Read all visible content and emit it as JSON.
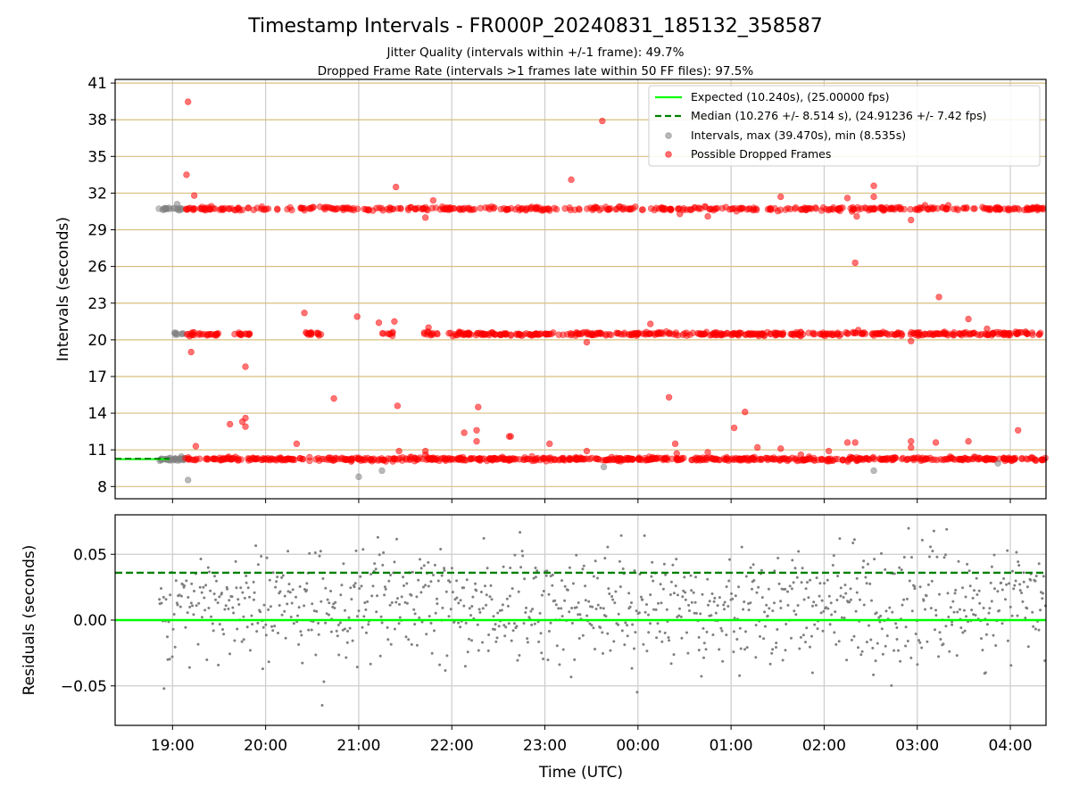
{
  "figure": {
    "title": "Timestamp Intervals - FR000P_20240831_185132_358587",
    "subtitle_1": "Jitter Quality (intervals within +/-1 frame): 49.7%",
    "subtitle_2": "Dropped Frame Rate (intervals >1 frames late within 50 FF files): 97.5%"
  },
  "chart_data": [
    {
      "type": "scatter",
      "panel": "top",
      "ylabel": "Intervals (seconds)",
      "xlim": [
        "18:23",
        "04:23"
      ],
      "ylim": [
        7,
        41.3
      ],
      "yticks": [
        "8",
        "11",
        "14",
        "17",
        "20",
        "23",
        "26",
        "29",
        "32",
        "35",
        "38",
        "41"
      ],
      "grid": true,
      "legend_position": "upper right",
      "legend": [
        {
          "label": "Expected (10.240s), (25.00000 fps)",
          "style": "solid line",
          "color": "#00ff00"
        },
        {
          "label": "Median (10.276 +/- 8.514 s), (24.91236 +/- 7.42 fps)",
          "style": "dashed line",
          "color": "#008000"
        },
        {
          "label": "Intervals, max (39.470s), min (8.535s)",
          "style": "marker",
          "color": "#808080"
        },
        {
          "label": "Possible Dropped Frames",
          "style": "marker",
          "color": "#ff0000"
        }
      ],
      "expected_interval": 10.24,
      "median_interval": 10.276,
      "intervals_max": 39.47,
      "intervals_min": 8.535,
      "bands": [
        {
          "y": 10.24,
          "ranges": [
            [
              "18:51",
              "19:08"
            ]
          ],
          "color": "#808080",
          "density": 30
        },
        {
          "y": 10.24,
          "ranges": [
            [
              "19:08",
              "04:23"
            ]
          ],
          "color": "#ff0000",
          "density": 700
        },
        {
          "y": 20.48,
          "ranges": [
            [
              "18:59",
              "19:07"
            ]
          ],
          "color": "#808080",
          "density": 8
        },
        {
          "y": 20.48,
          "ranges": [
            [
              "19:08",
              "19:30"
            ],
            [
              "19:38",
              "19:50"
            ],
            [
              "20:25",
              "20:37"
            ],
            [
              "21:15",
              "21:22"
            ],
            [
              "21:42",
              "21:52"
            ],
            [
              "21:58",
              "04:23"
            ]
          ],
          "color": "#ff0000",
          "density": 500
        },
        {
          "y": 30.72,
          "ranges": [
            [
              "18:51",
              "19:07"
            ]
          ],
          "color": "#808080",
          "density": 18
        },
        {
          "y": 30.72,
          "ranges": [
            [
              "19:08",
              "04:23"
            ]
          ],
          "color": "#ff0000",
          "density": 460
        }
      ],
      "gray_points": [
        {
          "x": "19:10",
          "y": 8.535
        },
        {
          "x": "21:00",
          "y": 8.8
        },
        {
          "x": "21:15",
          "y": 9.3
        },
        {
          "x": "23:38",
          "y": 9.6
        },
        {
          "x": "02:32",
          "y": 9.3
        },
        {
          "x": "03:52",
          "y": 9.9
        },
        {
          "x": "19:03",
          "y": 31.1
        }
      ],
      "red_points": [
        {
          "x": "19:10",
          "y": 39.47
        },
        {
          "x": "19:09",
          "y": 33.5
        },
        {
          "x": "19:14",
          "y": 31.8
        },
        {
          "x": "19:11",
          "y": 20.3
        },
        {
          "x": "19:12",
          "y": 19.0
        },
        {
          "x": "19:15",
          "y": 11.3
        },
        {
          "x": "19:37",
          "y": 13.1
        },
        {
          "x": "19:45",
          "y": 13.3
        },
        {
          "x": "19:47",
          "y": 12.9
        },
        {
          "x": "19:47",
          "y": 13.6
        },
        {
          "x": "19:47",
          "y": 17.8
        },
        {
          "x": "20:20",
          "y": 11.5
        },
        {
          "x": "20:25",
          "y": 22.2
        },
        {
          "x": "20:26",
          "y": 20.6
        },
        {
          "x": "20:44",
          "y": 15.2
        },
        {
          "x": "20:59",
          "y": 21.9
        },
        {
          "x": "21:13",
          "y": 21.4
        },
        {
          "x": "21:23",
          "y": 21.5
        },
        {
          "x": "21:25",
          "y": 14.6
        },
        {
          "x": "21:26",
          "y": 10.9
        },
        {
          "x": "21:24",
          "y": 32.5
        },
        {
          "x": "21:43",
          "y": 10.9
        },
        {
          "x": "21:43",
          "y": 10.6
        },
        {
          "x": "21:43",
          "y": 30.0
        },
        {
          "x": "21:45",
          "y": 21.0
        },
        {
          "x": "21:48",
          "y": 31.4
        },
        {
          "x": "22:08",
          "y": 12.4
        },
        {
          "x": "22:16",
          "y": 12.6
        },
        {
          "x": "22:16",
          "y": 11.7
        },
        {
          "x": "22:17",
          "y": 14.5
        },
        {
          "x": "22:37",
          "y": 12.1
        },
        {
          "x": "22:38",
          "y": 12.1
        },
        {
          "x": "23:03",
          "y": 11.5
        },
        {
          "x": "23:17",
          "y": 33.1
        },
        {
          "x": "23:27",
          "y": 10.9
        },
        {
          "x": "23:27",
          "y": 19.8
        },
        {
          "x": "23:37",
          "y": 37.9
        },
        {
          "x": "00:08",
          "y": 21.3
        },
        {
          "x": "00:20",
          "y": 15.3
        },
        {
          "x": "00:24",
          "y": 11.5
        },
        {
          "x": "00:25",
          "y": 10.7
        },
        {
          "x": "00:27",
          "y": 30.3
        },
        {
          "x": "00:45",
          "y": 30.1
        },
        {
          "x": "00:45",
          "y": 10.8
        },
        {
          "x": "01:02",
          "y": 12.8
        },
        {
          "x": "01:09",
          "y": 14.1
        },
        {
          "x": "01:17",
          "y": 11.2
        },
        {
          "x": "01:32",
          "y": 11.1
        },
        {
          "x": "01:32",
          "y": 31.7
        },
        {
          "x": "01:45",
          "y": 10.6
        },
        {
          "x": "02:03",
          "y": 10.9
        },
        {
          "x": "02:15",
          "y": 11.6
        },
        {
          "x": "02:15",
          "y": 31.6
        },
        {
          "x": "02:18",
          "y": 30.5
        },
        {
          "x": "02:20",
          "y": 11.6
        },
        {
          "x": "02:20",
          "y": 26.3
        },
        {
          "x": "02:21",
          "y": 30.1
        },
        {
          "x": "02:22",
          "y": 20.8
        },
        {
          "x": "02:32",
          "y": 32.6
        },
        {
          "x": "02:32",
          "y": 31.7
        },
        {
          "x": "02:56",
          "y": 11.7
        },
        {
          "x": "02:56",
          "y": 11.2
        },
        {
          "x": "02:56",
          "y": 19.9
        },
        {
          "x": "02:56",
          "y": 29.8
        },
        {
          "x": "03:05",
          "y": 31.0
        },
        {
          "x": "03:12",
          "y": 11.6
        },
        {
          "x": "03:14",
          "y": 23.5
        },
        {
          "x": "03:20",
          "y": 31.0
        },
        {
          "x": "03:33",
          "y": 11.7
        },
        {
          "x": "03:33",
          "y": 21.7
        },
        {
          "x": "03:45",
          "y": 20.9
        },
        {
          "x": "04:05",
          "y": 12.6
        },
        {
          "x": "04:05",
          "y": 20.6
        }
      ]
    },
    {
      "type": "scatter",
      "panel": "bottom",
      "xlabel": "Time (UTC)",
      "ylabel": "Residuals (seconds)",
      "xlim": [
        "18:23",
        "04:23"
      ],
      "ylim": [
        -0.08,
        0.08
      ],
      "xticks": [
        "19:00",
        "20:00",
        "21:00",
        "22:00",
        "23:00",
        "00:00",
        "01:00",
        "02:00",
        "03:00",
        "04:00"
      ],
      "yticks": [
        "0.05",
        "0.00",
        "−0.05"
      ],
      "grid": true,
      "expected_residual": 0.0,
      "median_residual": 0.036,
      "points": {
        "count": 1000,
        "x_range": [
          "18:51",
          "04:23"
        ],
        "y_center": 0.01,
        "y_spread_sd": 0.022,
        "y_range_observed": [
          -0.073,
          0.079
        ],
        "color": "#808080"
      }
    }
  ]
}
